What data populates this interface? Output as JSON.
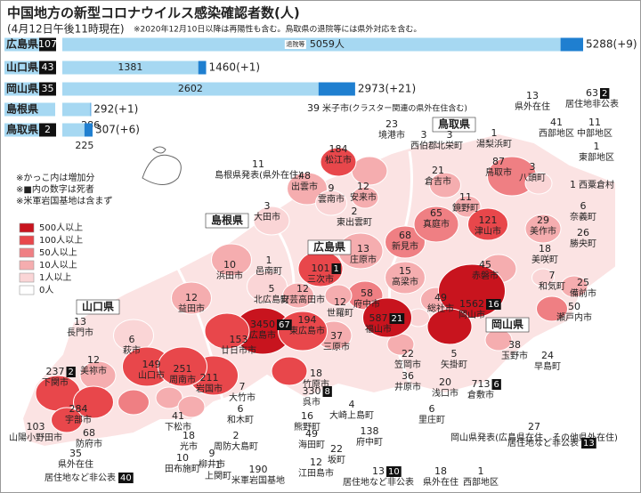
{
  "header": {
    "title": "中国地方の新型コロナウイルス感染確認者数(人)",
    "subtitle": "(4月12日午後11時現在)",
    "note": "※2020年12月10日以降は再陽性も含む。鳥取県の退院等には県外対応を含む。"
  },
  "bar_chart": {
    "recovered_legend": "退院等",
    "bars": [
      {
        "prefecture": "広島県",
        "deaths": 107,
        "recovered": 5059,
        "recovered_label": "5059人",
        "total": 5288,
        "change": "(+9)"
      },
      {
        "prefecture": "山口県",
        "deaths": 43,
        "recovered": 1381,
        "total": 1460,
        "change": "(+1)"
      },
      {
        "prefecture": "岡山県",
        "deaths": 35,
        "recovered": 2602,
        "total": 2973,
        "change": "(+21)"
      },
      {
        "prefecture": "島根県",
        "recovered": 286,
        "total": 292,
        "change": "(+1)"
      },
      {
        "prefecture": "鳥取県",
        "deaths": 2,
        "recovered": 225,
        "total": 307,
        "change": "(+6)"
      }
    ]
  },
  "legend": {
    "notes": [
      "※かっこ内は増加分",
      "※■内の数字は死者",
      "※米軍岩国基地は含まず"
    ],
    "items": [
      {
        "label": "500人以上",
        "color": "#c8141e"
      },
      {
        "label": "100人以上",
        "color": "#e8474b"
      },
      {
        "label": "50人以上",
        "color": "#ef7f83"
      },
      {
        "label": "10人以上",
        "color": "#f5adaf"
      },
      {
        "label": "1人以上",
        "color": "#fad5d6"
      },
      {
        "label": "0人",
        "color": "#ffffff"
      }
    ]
  },
  "prefectures": [
    "鳥取県",
    "島根県",
    "広島県",
    "山口県",
    "岡山県"
  ],
  "municipalities": [
    {
      "name": "米子市",
      "count": 39,
      "note": "(クラスター関連の県外在住含む)",
      "color": "#f5adaf"
    },
    {
      "name": "境港市",
      "count": 23
    },
    {
      "name": "西伯郡",
      "count": 3
    },
    {
      "name": "北栄町",
      "count": 3
    },
    {
      "name": "湯梨浜町",
      "count": 1
    },
    {
      "name": "鳥取市",
      "count": 87,
      "color": "#ef7f83"
    },
    {
      "name": "倉吉市",
      "count": 21,
      "color": "#f5adaf"
    },
    {
      "name": "八頭町",
      "count": 3,
      "color": "#fad5d6"
    },
    {
      "name": "西粟倉村",
      "count": 1
    },
    {
      "name": "松江市",
      "count": 184,
      "color": "#e8474b"
    },
    {
      "name": "出雲市",
      "count": 48,
      "color": "#f5adaf"
    },
    {
      "name": "雲南市",
      "count": 9,
      "color": "#fad5d6"
    },
    {
      "name": "安来市",
      "count": 12,
      "color": "#f5adaf"
    },
    {
      "name": "東出雲町",
      "count": 2
    },
    {
      "name": "大田市",
      "count": 3,
      "color": "#fad5d6"
    },
    {
      "name": "邑南町",
      "count": 1
    },
    {
      "name": "浜田市",
      "count": 10,
      "color": "#f5adaf"
    },
    {
      "name": "益田市",
      "count": 12,
      "color": "#f5adaf"
    },
    {
      "name": "庄原市",
      "count": 13,
      "color": "#f5adaf"
    },
    {
      "name": "新見市",
      "count": 68,
      "color": "#ef7f83"
    },
    {
      "name": "真庭市",
      "count": 65,
      "color": "#ef7f83"
    },
    {
      "name": "鏡野町",
      "count": 11,
      "color": "#f5adaf"
    },
    {
      "name": "津山市",
      "count": 121,
      "color": "#e8474b"
    },
    {
      "name": "美作市",
      "count": 29,
      "color": "#f5adaf"
    },
    {
      "name": "奈義町",
      "count": 6
    },
    {
      "name": "勝央町",
      "count": 26
    },
    {
      "name": "美咲町",
      "count": 18
    },
    {
      "name": "和気町",
      "count": 7,
      "color": "#fad5d6"
    },
    {
      "name": "備前市",
      "count": 25,
      "color": "#f5adaf"
    },
    {
      "name": "瀬戸内市",
      "count": 50,
      "color": "#ef7f83"
    },
    {
      "name": "赤磐市",
      "count": 45,
      "color": "#f5adaf"
    },
    {
      "name": "高梁市",
      "count": 15,
      "color": "#f5adaf"
    },
    {
      "name": "総社市",
      "count": 49,
      "color": "#f5adaf"
    },
    {
      "name": "岡山市",
      "count": 1562,
      "deaths": 16,
      "color": "#c8141e"
    },
    {
      "name": "玉野市",
      "count": 38,
      "color": "#f5adaf"
    },
    {
      "name": "早島町",
      "count": 24
    },
    {
      "name": "倉敷市",
      "count": 713,
      "deaths": 6,
      "color": "#c8141e"
    },
    {
      "name": "矢掛町",
      "count": 5,
      "color": "#fad5d6"
    },
    {
      "name": "浅口市",
      "count": 20
    },
    {
      "name": "里庄町",
      "count": 6
    },
    {
      "name": "笠岡市",
      "count": 22,
      "color": "#f5adaf"
    },
    {
      "name": "井原市",
      "count": 36
    },
    {
      "name": "府中市",
      "count": 58,
      "color": "#ef7f83"
    },
    {
      "name": "世羅町",
      "count": 12,
      "color": "#f5adaf"
    },
    {
      "name": "福山市",
      "count": 587,
      "deaths": 21,
      "color": "#c8141e"
    },
    {
      "name": "三原市",
      "count": 37,
      "color": "#f5adaf"
    },
    {
      "name": "三次市",
      "count": 101,
      "deaths": 1,
      "color": "#e8474b"
    },
    {
      "name": "北広島町",
      "count": 5,
      "color": "#fad5d6"
    },
    {
      "name": "安芸高田市",
      "count": 12,
      "color": "#f5adaf"
    },
    {
      "name": "広島市",
      "count": 3450,
      "deaths": 67,
      "color": "#c8141e"
    },
    {
      "name": "東広島市",
      "count": 194,
      "color": "#e8474b"
    },
    {
      "name": "廿日市市",
      "count": 153,
      "color": "#e8474b"
    },
    {
      "name": "竹原市",
      "count": 18
    },
    {
      "name": "大崎上島町",
      "count": 4
    },
    {
      "name": "呉市",
      "count": 330,
      "deaths": 8,
      "color": "#e8474b"
    },
    {
      "name": "熊野町",
      "count": 16
    },
    {
      "name": "海田町",
      "count": 49
    },
    {
      "name": "府中町",
      "count": 138
    },
    {
      "name": "坂町",
      "count": 22
    },
    {
      "name": "江田島市",
      "count": 12
    },
    {
      "name": "大竹市",
      "count": 7
    },
    {
      "name": "和木町",
      "count": 6
    },
    {
      "name": "岩国市",
      "count": 211,
      "color": "#e8474b"
    },
    {
      "name": "長門市",
      "count": 13
    },
    {
      "name": "萩市",
      "count": 6,
      "color": "#fad5d6"
    },
    {
      "name": "美祢市",
      "count": 12,
      "color": "#f5adaf"
    },
    {
      "name": "下関市",
      "count": 237,
      "deaths": 2,
      "color": "#e8474b"
    },
    {
      "name": "山口市",
      "count": 149,
      "color": "#e8474b"
    },
    {
      "name": "周南市",
      "count": 251,
      "color": "#e8474b"
    },
    {
      "name": "宇部市",
      "count": 284,
      "color": "#e8474b"
    },
    {
      "name": "山陽小野田市",
      "count": 103,
      "color": "#e8474b"
    },
    {
      "name": "防府市",
      "count": 68,
      "color": "#ef7f83"
    },
    {
      "name": "下松市",
      "count": 41,
      "color": "#f5adaf"
    },
    {
      "name": "光市",
      "count": 18,
      "color": "#f5adaf"
    },
    {
      "name": "田布施町",
      "count": 10
    },
    {
      "name": "上関町",
      "count": 1
    },
    {
      "name": "周防大島町",
      "count": 2
    },
    {
      "name": "柳井市",
      "count": 9
    },
    {
      "name": "米軍岩国基地",
      "count": 190
    },
    {
      "name": "県外在住",
      "count": 35
    },
    {
      "name": "居住地など非公表",
      "deaths": 40
    },
    {
      "name": "居住地など非公表",
      "count": 13,
      "deaths": 10
    },
    {
      "name": "県外在住",
      "count": 18
    },
    {
      "name": "西部地区",
      "count": 1
    },
    {
      "name": "岡山県発表(広島県在住、その他県外在住)",
      "count": 27
    },
    {
      "name": "居住地など非公表",
      "deaths": 13
    },
    {
      "name": "県外在住",
      "count": 13
    },
    {
      "name": "居住地非公表",
      "count": 63,
      "deaths": 2
    },
    {
      "name": "西部地区",
      "count": 41
    },
    {
      "name": "中部地区",
      "count": 11
    },
    {
      "name": "東部地区",
      "count": 1
    },
    {
      "name": "島根県発表(県外在住)",
      "count": 11
    }
  ]
}
